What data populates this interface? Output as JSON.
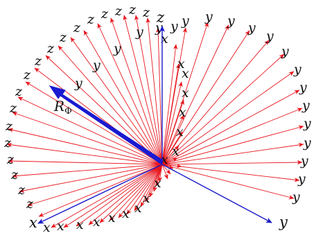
{
  "labels": {
    "rotated_x": "x",
    "rotated_y": "y",
    "rotated_z": "z",
    "base_x": "x",
    "base_y": "y",
    "base_z": "z",
    "rotation_vector": "R",
    "rotation_vector_sub": "Φ"
  },
  "colors": {
    "rotated_frames": "#e8141c",
    "base_frame": "#1a1ac8",
    "rotation_vector": "#1a1ad0",
    "text": "#111111"
  }
}
